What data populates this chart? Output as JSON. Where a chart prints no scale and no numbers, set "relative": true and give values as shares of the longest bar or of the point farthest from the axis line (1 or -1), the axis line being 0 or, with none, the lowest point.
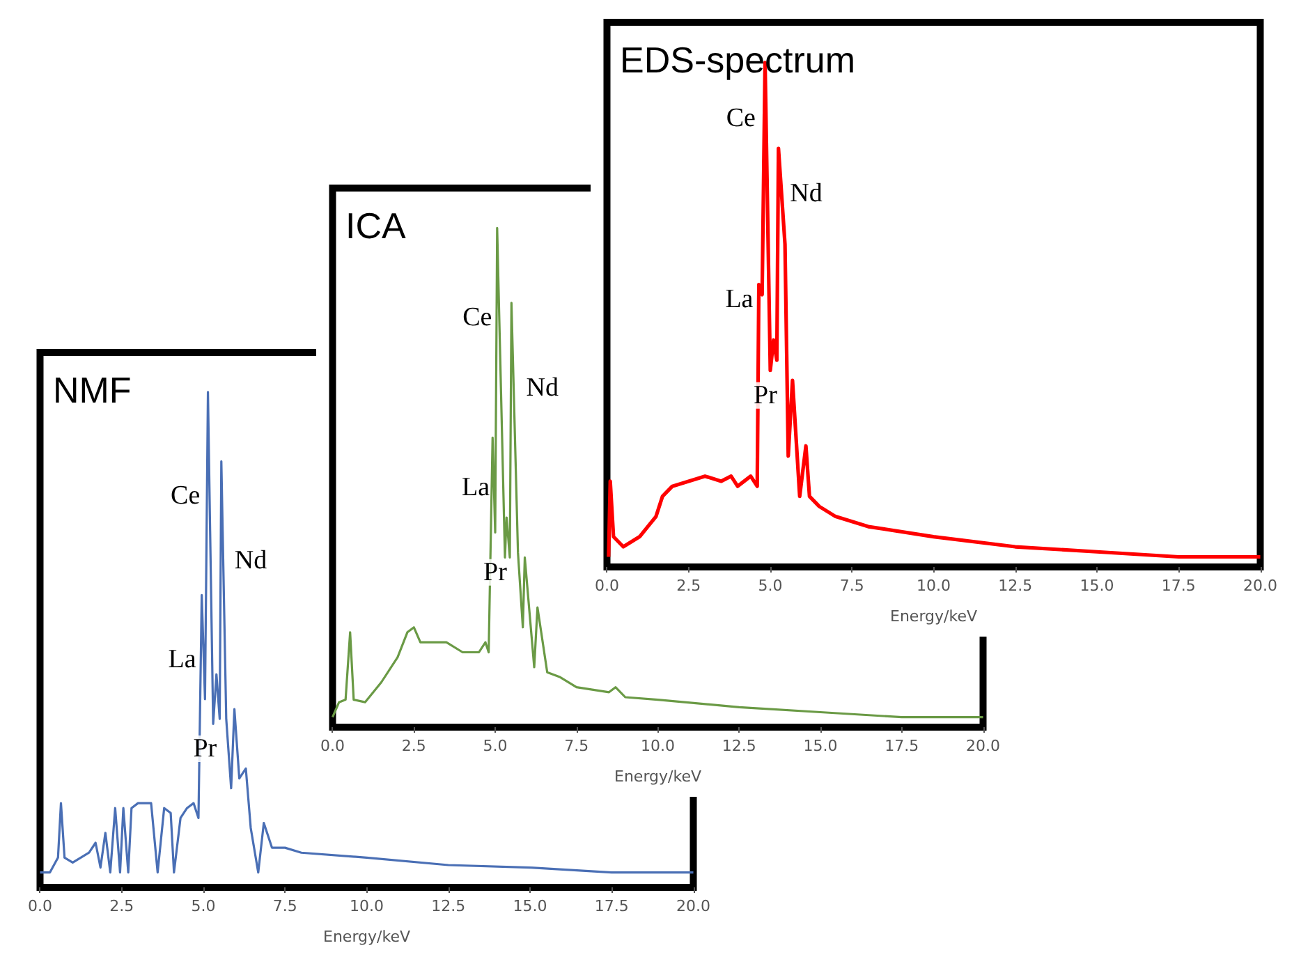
{
  "chart_data": [
    {
      "type": "line",
      "title": "NMF",
      "xlabel": "Energy/keV",
      "relative": true,
      "xlim": [
        0,
        20
      ],
      "xticks": [
        {
          "value": 0,
          "label": "0.0"
        },
        {
          "value": 2.5,
          "label": "2.5"
        },
        {
          "value": 5,
          "label": "5.0"
        },
        {
          "value": 7.5,
          "label": "7.5"
        },
        {
          "value": 10,
          "label": "10.0"
        },
        {
          "value": 12.5,
          "label": "12.5"
        },
        {
          "value": 15,
          "label": "15.0"
        },
        {
          "value": 17.5,
          "label": "17.5"
        },
        {
          "value": 20,
          "label": "20.0"
        }
      ],
      "x": [
        0,
        0.3,
        0.55,
        0.64,
        0.75,
        1.0,
        1.5,
        1.7,
        1.85,
        2.0,
        2.15,
        2.3,
        2.45,
        2.55,
        2.7,
        2.8,
        3.0,
        3.4,
        3.6,
        3.8,
        4.0,
        4.1,
        4.3,
        4.5,
        4.7,
        4.85,
        4.95,
        5.05,
        5.14,
        5.3,
        5.4,
        5.5,
        5.55,
        5.7,
        5.85,
        5.95,
        6.1,
        6.3,
        6.45,
        6.68,
        6.85,
        7.1,
        7.5,
        8.0,
        10.0,
        12.5,
        15.0,
        17.5,
        20.0
      ],
      "series": [
        {
          "color": "#4a6fb5",
          "values": [
            0.03,
            0.03,
            0.06,
            0.17,
            0.06,
            0.05,
            0.07,
            0.09,
            0.04,
            0.11,
            0.03,
            0.16,
            0.03,
            0.16,
            0.03,
            0.16,
            0.17,
            0.17,
            0.03,
            0.16,
            0.15,
            0.03,
            0.14,
            0.16,
            0.17,
            0.14,
            0.59,
            0.38,
            1.0,
            0.33,
            0.43,
            0.34,
            0.86,
            0.34,
            0.2,
            0.36,
            0.22,
            0.24,
            0.12,
            0.03,
            0.13,
            0.08,
            0.08,
            0.07,
            0.06,
            0.045,
            0.04,
            0.03,
            0.03
          ]
        }
      ],
      "annotations": [
        "Ce",
        "Nd",
        "La",
        "Pr"
      ]
    },
    {
      "type": "line",
      "title": "ICA",
      "xlabel": "Energy/keV",
      "relative": true,
      "xlim": [
        0,
        20
      ],
      "xticks": [
        {
          "value": 0,
          "label": "0.0"
        },
        {
          "value": 2.5,
          "label": "2.5"
        },
        {
          "value": 5,
          "label": "5.0"
        },
        {
          "value": 7.5,
          "label": "7.5"
        },
        {
          "value": 10,
          "label": "10.0"
        },
        {
          "value": 12.5,
          "label": "12.5"
        },
        {
          "value": 15,
          "label": "15.0"
        },
        {
          "value": 17.5,
          "label": "17.5"
        },
        {
          "value": 20,
          "label": "20.0"
        }
      ],
      "x": [
        0,
        0.2,
        0.4,
        0.54,
        0.65,
        1.0,
        1.5,
        2.0,
        2.3,
        2.5,
        2.7,
        3.0,
        3.5,
        4.0,
        4.5,
        4.7,
        4.8,
        4.92,
        5.0,
        5.06,
        5.3,
        5.35,
        5.45,
        5.5,
        5.7,
        5.85,
        5.91,
        6.2,
        6.3,
        6.6,
        7.0,
        7.5,
        8.5,
        8.7,
        9.0,
        10.0,
        12.5,
        15.0,
        17.5,
        20.0
      ],
      "series": [
        {
          "color": "#6a9a45",
          "values": [
            0.02,
            0.05,
            0.055,
            0.19,
            0.055,
            0.05,
            0.09,
            0.14,
            0.19,
            0.2,
            0.17,
            0.17,
            0.17,
            0.15,
            0.15,
            0.17,
            0.15,
            0.58,
            0.39,
            1.0,
            0.34,
            0.42,
            0.34,
            0.85,
            0.35,
            0.2,
            0.34,
            0.12,
            0.24,
            0.11,
            0.1,
            0.08,
            0.07,
            0.08,
            0.06,
            0.055,
            0.04,
            0.03,
            0.02,
            0.02
          ]
        }
      ],
      "annotations": [
        "Ce",
        "Nd",
        "La",
        "Pr"
      ]
    },
    {
      "type": "line",
      "title": "EDS-spectrum",
      "xlabel": "Energy/keV",
      "relative": true,
      "xlim": [
        0,
        20
      ],
      "xticks": [
        {
          "value": 0,
          "label": "0.0"
        },
        {
          "value": 2.5,
          "label": "2.5"
        },
        {
          "value": 5,
          "label": "5.0"
        },
        {
          "value": 7.5,
          "label": "7.5"
        },
        {
          "value": 10,
          "label": "10.0"
        },
        {
          "value": 12.5,
          "label": "12.5"
        },
        {
          "value": 15,
          "label": "15.0"
        },
        {
          "value": 17.5,
          "label": "17.5"
        },
        {
          "value": 20,
          "label": "20.0"
        }
      ],
      "x": [
        0.05,
        0.1,
        0.2,
        0.5,
        1.0,
        1.5,
        1.7,
        2.0,
        2.5,
        3.0,
        3.5,
        3.8,
        4.0,
        4.4,
        4.6,
        4.65,
        4.75,
        4.84,
        5.0,
        5.1,
        5.2,
        5.25,
        5.45,
        5.55,
        5.68,
        5.9,
        6.09,
        6.2,
        6.5,
        7.0,
        8.0,
        10.0,
        12.5,
        15.0,
        17.5,
        20.0
      ],
      "series": [
        {
          "color": "#ff0000",
          "values": [
            0.02,
            0.17,
            0.06,
            0.04,
            0.06,
            0.1,
            0.14,
            0.16,
            0.17,
            0.18,
            0.17,
            0.18,
            0.16,
            0.18,
            0.16,
            0.56,
            0.54,
            1.0,
            0.39,
            0.45,
            0.41,
            0.83,
            0.64,
            0.22,
            0.37,
            0.14,
            0.24,
            0.14,
            0.12,
            0.1,
            0.08,
            0.06,
            0.04,
            0.03,
            0.02,
            0.02
          ]
        }
      ],
      "annotations": [
        "Ce",
        "Nd",
        "La",
        "Pr"
      ]
    }
  ]
}
